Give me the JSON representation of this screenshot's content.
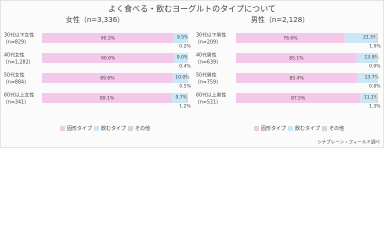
{
  "title": "よく食べる・飲むヨーグルトのタイプについて",
  "source": "シナプレーン・フィールド調べ",
  "chart_data": [
    {
      "type": "bar",
      "orientation": "horizontal",
      "stacked": true,
      "title": "女性（n=3,336）",
      "categories": [
        "30代以下女性",
        "40代女性",
        "50代女性",
        "60代以上女性"
      ],
      "category_counts": [
        "(n=829)",
        "(n=1,282)",
        "(n=884)",
        "(n=341)"
      ],
      "xlim": [
        0,
        100
      ],
      "series": [
        {
          "name": "固形タイプ",
          "color": "#f4c8e8",
          "values": [
            90.3,
            90.6,
            89.6,
            89.1
          ],
          "value_labels": [
            "90.3%",
            "90.6%",
            "89.6%",
            "89.1%"
          ]
        },
        {
          "name": "飲むタイプ",
          "color": "#c9e7f6",
          "values": [
            9.5,
            9.0,
            10.0,
            9.7
          ],
          "value_labels": [
            "9.5%",
            "9.0%",
            "10.0%",
            "9.7%"
          ]
        },
        {
          "name": "その他",
          "color": "#d6d6d6",
          "values": [
            0.2,
            0.4,
            0.5,
            1.2
          ],
          "value_labels": [
            "0.2%",
            "0.4%",
            "0.5%",
            "1.2%"
          ]
        }
      ]
    },
    {
      "type": "bar",
      "orientation": "horizontal",
      "stacked": true,
      "title": "男性（n=2,128）",
      "categories": [
        "30代以下男性",
        "40代男性",
        "50代男性",
        "60代以上男性"
      ],
      "category_counts": [
        "(n=209)",
        "(n=639)",
        "(n=759)",
        "(n=521)"
      ],
      "xlim": [
        0,
        100
      ],
      "series": [
        {
          "name": "固形タイプ",
          "color": "#f4c8e8",
          "values": [
            76.6,
            85.1,
            85.4,
            87.5
          ],
          "value_labels": [
            "76.6%",
            "85.1%",
            "85.4%",
            "87.5%"
          ]
        },
        {
          "name": "飲むタイプ",
          "color": "#c9e7f6",
          "values": [
            21.5,
            13.9,
            13.7,
            11.1
          ],
          "value_labels": [
            "21.5%",
            "13.9%",
            "13.7%",
            "11.1%"
          ]
        },
        {
          "name": "その他",
          "color": "#d6d6d6",
          "values": [
            1.9,
            0.9,
            0.8,
            1.3
          ],
          "value_labels": [
            "1.9%",
            "0.9%",
            "0.8%",
            "1.3%"
          ]
        }
      ]
    }
  ]
}
